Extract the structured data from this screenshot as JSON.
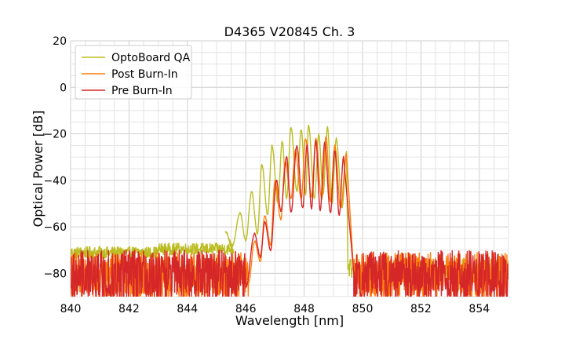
{
  "chart_data": {
    "type": "line",
    "title": "D4365 V20845 Ch. 3",
    "xlabel": "Wavelength [nm]",
    "ylabel": "Optical Power [dB]",
    "xlim": [
      840,
      855
    ],
    "ylim": [
      -90,
      20
    ],
    "xticks": [
      840,
      842,
      844,
      846,
      848,
      850,
      852,
      854
    ],
    "yticks": [
      -80,
      -60,
      -40,
      -20,
      0,
      20
    ],
    "grid": true,
    "legend_position": "top-left",
    "series": [
      {
        "name": "OptoBoard QA",
        "color": "#bcbd22",
        "noise": {
          "x_start": 840,
          "x_end": 845.6,
          "level": -71,
          "amp": 2.5
        },
        "noise_after": {
          "x_start": 849.5,
          "x_end": 855,
          "level": -78,
          "amp": 4
        },
        "peaks": [
          {
            "x": 845.3,
            "y": -62
          },
          {
            "x": 845.8,
            "y": -54
          },
          {
            "x": 846.2,
            "y": -45
          },
          {
            "x": 846.55,
            "y": -33
          },
          {
            "x": 846.9,
            "y": -25
          },
          {
            "x": 847.25,
            "y": -23
          },
          {
            "x": 847.55,
            "y": -17
          },
          {
            "x": 847.9,
            "y": -18
          },
          {
            "x": 848.15,
            "y": -16
          },
          {
            "x": 848.5,
            "y": -20
          },
          {
            "x": 848.8,
            "y": -17
          },
          {
            "x": 849.1,
            "y": -22
          },
          {
            "x": 849.45,
            "y": -28
          }
        ],
        "valleys": [
          {
            "x": 845.55,
            "y": -68
          },
          {
            "x": 846.0,
            "y": -66
          },
          {
            "x": 846.4,
            "y": -63
          },
          {
            "x": 846.75,
            "y": -55
          },
          {
            "x": 847.1,
            "y": -50
          },
          {
            "x": 847.4,
            "y": -48
          },
          {
            "x": 847.75,
            "y": -45
          },
          {
            "x": 848.05,
            "y": -46
          },
          {
            "x": 848.35,
            "y": -48
          },
          {
            "x": 848.65,
            "y": -46
          },
          {
            "x": 848.95,
            "y": -50
          },
          {
            "x": 849.3,
            "y": -52
          }
        ]
      },
      {
        "name": "Post Burn-In",
        "color": "#ff7f0e",
        "noise": {
          "x_start": 840,
          "x_end": 846.1,
          "level": -80,
          "amp": 9
        },
        "noise_after": {
          "x_start": 849.7,
          "x_end": 855,
          "level": -80,
          "amp": 9
        },
        "peaks": [
          {
            "x": 846.3,
            "y": -66
          },
          {
            "x": 846.65,
            "y": -55
          },
          {
            "x": 847.0,
            "y": -40
          },
          {
            "x": 847.35,
            "y": -32
          },
          {
            "x": 847.7,
            "y": -27
          },
          {
            "x": 848.05,
            "y": -22
          },
          {
            "x": 848.4,
            "y": -22
          },
          {
            "x": 848.75,
            "y": -21
          },
          {
            "x": 849.05,
            "y": -25
          },
          {
            "x": 849.45,
            "y": -29
          }
        ],
        "valleys": [
          {
            "x": 846.5,
            "y": -75
          },
          {
            "x": 846.85,
            "y": -68
          },
          {
            "x": 847.2,
            "y": -57
          },
          {
            "x": 847.55,
            "y": -48
          },
          {
            "x": 847.9,
            "y": -48
          },
          {
            "x": 848.25,
            "y": -47
          },
          {
            "x": 848.6,
            "y": -48
          },
          {
            "x": 848.9,
            "y": -49
          },
          {
            "x": 849.25,
            "y": -52
          }
        ]
      },
      {
        "name": "Pre Burn-In",
        "color": "#d62728",
        "noise": {
          "x_start": 840,
          "x_end": 846.0,
          "level": -80,
          "amp": 10
        },
        "noise_after": {
          "x_start": 849.7,
          "x_end": 855,
          "level": -80,
          "amp": 10
        },
        "peaks": [
          {
            "x": 846.3,
            "y": -63
          },
          {
            "x": 846.65,
            "y": -58
          },
          {
            "x": 847.05,
            "y": -40
          },
          {
            "x": 847.4,
            "y": -30
          },
          {
            "x": 847.75,
            "y": -25
          },
          {
            "x": 848.1,
            "y": -25
          },
          {
            "x": 848.4,
            "y": -23
          },
          {
            "x": 848.7,
            "y": -24
          },
          {
            "x": 849.05,
            "y": -27
          },
          {
            "x": 849.35,
            "y": -30
          }
        ],
        "valleys": [
          {
            "x": 846.5,
            "y": -73
          },
          {
            "x": 846.85,
            "y": -70
          },
          {
            "x": 847.2,
            "y": -53
          },
          {
            "x": 847.55,
            "y": -54
          },
          {
            "x": 847.95,
            "y": -52
          },
          {
            "x": 848.25,
            "y": -52
          },
          {
            "x": 848.55,
            "y": -53
          },
          {
            "x": 848.9,
            "y": -54
          },
          {
            "x": 849.2,
            "y": -55
          }
        ]
      }
    ]
  }
}
